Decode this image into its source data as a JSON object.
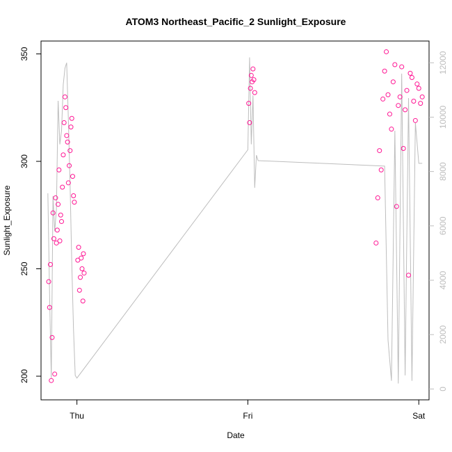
{
  "chart_data": {
    "type": "scatter",
    "title": "ATOM3 Northeast_Pacific_2 Sunlight_Exposure",
    "xlabel": "Date",
    "ylabel": "Sunlight_Exposure",
    "x_ticks": [
      "Thu",
      "Fri",
      "Sat"
    ],
    "x_tick_values": [
      1.0,
      2.0,
      3.0
    ],
    "xlim": [
      0.79,
      3.06
    ],
    "ylim": [
      189,
      356
    ],
    "y_ticks": [
      200,
      250,
      300,
      350
    ],
    "y2lim": [
      -400,
      12800
    ],
    "y2_ticks": [
      0,
      2000,
      4000,
      6000,
      8000,
      10000,
      12000
    ],
    "grid": false,
    "colors": {
      "points": "#ff1493",
      "secondary_line": "#bdbdbd",
      "axis": "#000000",
      "axis2": "#bdbdbd"
    },
    "series": [
      {
        "kind": "points",
        "axis": "left",
        "x": [
          0.835,
          0.84,
          0.845,
          0.85,
          0.855,
          0.86,
          0.865,
          0.87,
          0.875,
          0.88,
          0.885,
          0.89,
          0.895,
          0.9,
          0.905,
          0.91,
          0.915,
          0.92,
          0.925,
          0.93,
          0.935,
          0.94,
          0.945,
          0.95,
          0.955,
          0.96,
          0.965,
          0.97,
          0.975,
          0.98,
          0.985,
          1.005,
          1.01,
          1.015,
          1.02,
          1.025,
          1.03,
          1.035,
          1.038,
          1.042,
          2.005,
          2.01,
          2.015,
          2.02,
          2.025,
          2.03,
          2.035,
          2.04,
          2.75,
          2.76,
          2.77,
          2.78,
          2.79,
          2.8,
          2.81,
          2.82,
          2.83,
          2.84,
          2.85,
          2.86,
          2.87,
          2.88,
          2.89,
          2.9,
          2.91,
          2.92,
          2.93,
          2.94,
          2.95,
          2.96,
          2.97,
          2.98,
          2.99,
          3.0,
          3.01,
          3.02
        ],
        "y": [
          244,
          232,
          252,
          198,
          218,
          276,
          264,
          201,
          283,
          262,
          268,
          280,
          296,
          263,
          275,
          272,
          288,
          303,
          318,
          330,
          325,
          312,
          309,
          290,
          298,
          305,
          316,
          320,
          293,
          284,
          281,
          254,
          260,
          240,
          246,
          255,
          250,
          235,
          257,
          248,
          327,
          318,
          334,
          340,
          337,
          343,
          338,
          332,
          262,
          283,
          305,
          296,
          329,
          342,
          351,
          331,
          322,
          315,
          337,
          345,
          279,
          326,
          330,
          344,
          306,
          324,
          333,
          247,
          341,
          339,
          328,
          319,
          336,
          334,
          327,
          330
        ]
      },
      {
        "kind": "line",
        "axis": "right",
        "x": [
          0.83,
          0.84,
          0.85,
          0.86,
          0.87,
          0.88,
          0.89,
          0.9,
          0.91,
          0.92,
          0.93,
          0.94,
          0.95,
          0.96,
          0.97,
          0.98,
          0.99,
          1.0,
          2.0,
          2.01,
          2.02,
          2.03,
          2.04,
          2.05,
          2.06,
          2.8,
          2.82,
          2.84,
          2.86,
          2.88,
          2.9,
          2.92,
          2.94,
          2.96,
          2.98,
          3.0,
          3.02
        ],
        "y": [
          7200,
          3500,
          400,
          7100,
          5800,
          6600,
          10600,
          9000,
          9500,
          11200,
          11800,
          12000,
          9900,
          7500,
          4600,
          2200,
          500,
          400,
          8800,
          12200,
          9000,
          10800,
          7400,
          8600,
          8400,
          8200,
          1800,
          300,
          9500,
          200,
          11600,
          500,
          10700,
          300,
          9800,
          8300,
          8300
        ]
      }
    ]
  }
}
